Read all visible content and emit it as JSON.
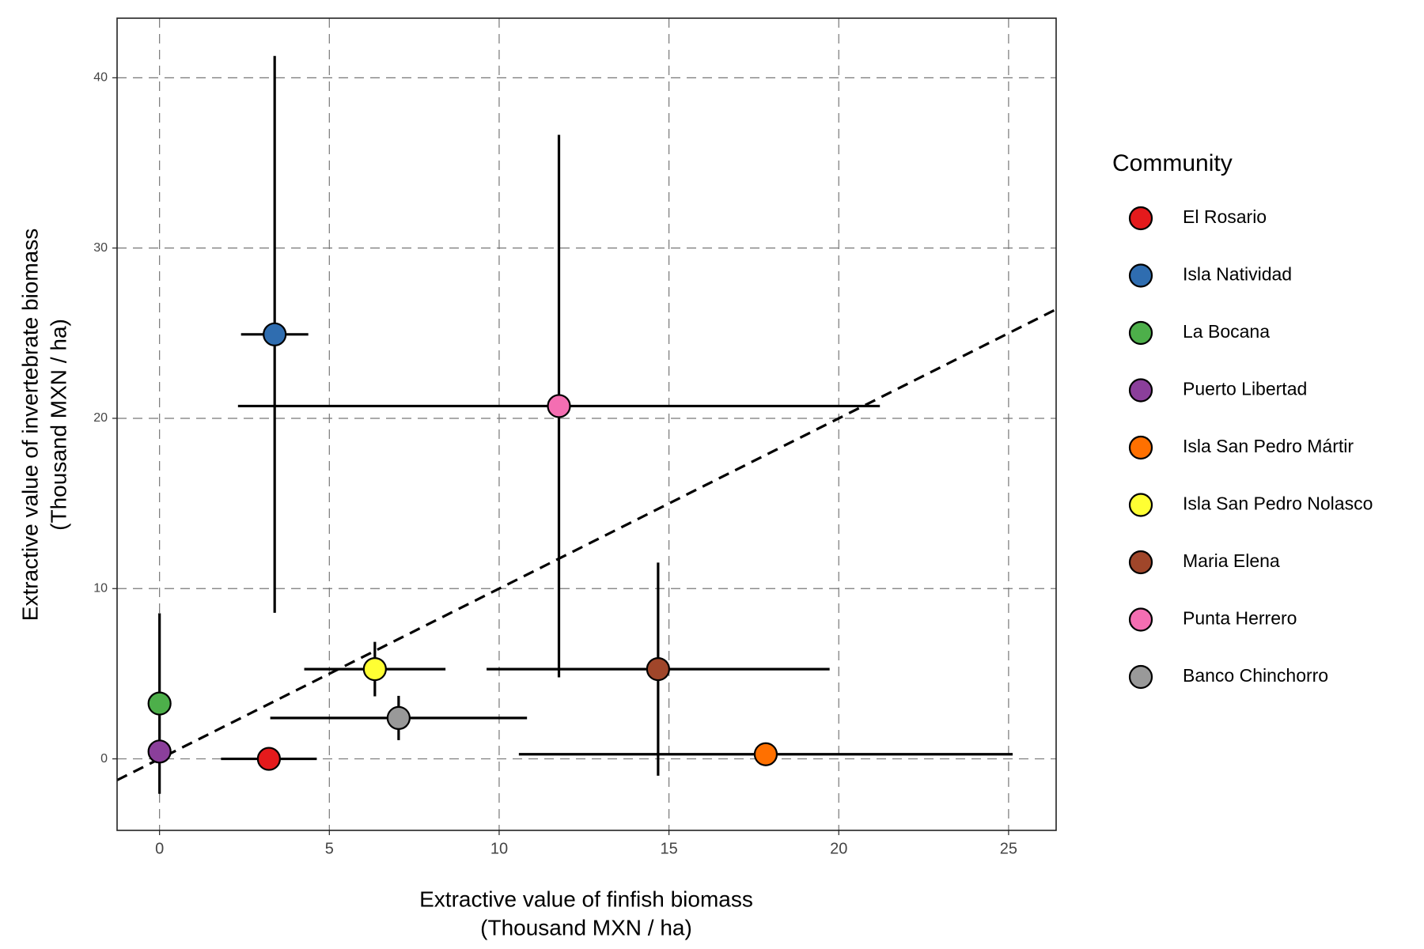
{
  "chart_data": {
    "type": "scatter",
    "x_label": [
      "Extractive value of finfish biomass",
      "(Thousand MXN / ha)"
    ],
    "y_label": [
      "Extractive value of invertebrate biomass",
      "(Thousand MXN / ha)"
    ],
    "legend_title": "Community",
    "legend_position": "right",
    "grid": true,
    "xlim": [
      -1.25,
      26.4
    ],
    "ylim": [
      -4.2,
      43.5
    ],
    "xticks": [
      0,
      5,
      10,
      15,
      20,
      25
    ],
    "yticks": [
      0,
      10,
      20,
      30,
      40
    ],
    "reference_line": {
      "slope": 1,
      "intercept": 0
    },
    "series": [
      {
        "name": "El Rosario",
        "color": "#e41a1c",
        "x": 3.22,
        "y": 0,
        "xerr": 1.41,
        "yerr": 0
      },
      {
        "name": "Isla Natividad",
        "color": "#2f6db0",
        "x": 3.39,
        "y": 24.93,
        "xerr": 0.99,
        "yerr": 16.35
      },
      {
        "name": "La Bocana",
        "color": "#4daf4a",
        "x": 0,
        "y": 3.25,
        "xerr": 0,
        "yerr": 5.3
      },
      {
        "name": "Puerto Libertad",
        "color": "#8b3f9b",
        "x": 0,
        "y": 0.43,
        "xerr": 0,
        "yerr": 0.5
      },
      {
        "name": "Isla San Pedro Mártir",
        "color": "#ff7000",
        "x": 17.85,
        "y": 0.27,
        "xerr": 7.27,
        "yerr": 0
      },
      {
        "name": "Isla San Pedro Nolasco",
        "color": "#ffff33",
        "x": 6.34,
        "y": 5.27,
        "xerr": 2.08,
        "yerr": 1.6
      },
      {
        "name": "Maria Elena",
        "color": "#a0462a",
        "x": 14.68,
        "y": 5.27,
        "xerr": 5.05,
        "yerr": 6.26
      },
      {
        "name": "Punta Herrero",
        "color": "#f46eb2",
        "x": 11.76,
        "y": 20.72,
        "xerr": 9.45,
        "yerr": 15.93
      },
      {
        "name": "Banco Chinchorro",
        "color": "#999999",
        "x": 7.04,
        "y": 2.4,
        "xerr": 3.78,
        "yerr": 1.3
      }
    ]
  }
}
